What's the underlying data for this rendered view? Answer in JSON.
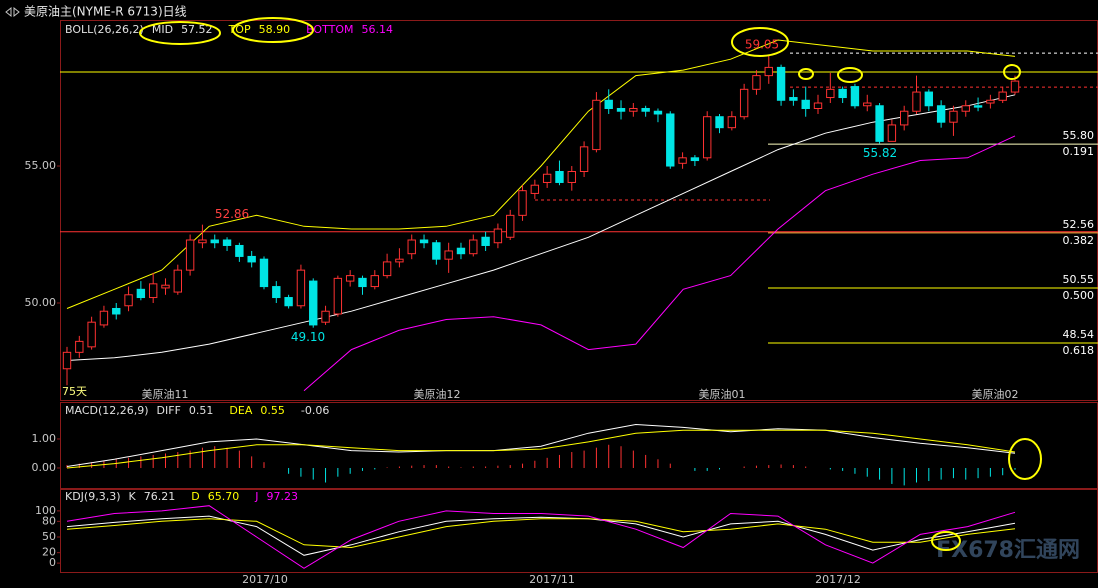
{
  "chart_data": [
    {
      "type": "candlestick",
      "title": "美原油主(NYME-R 6713)日线",
      "indicator": "BOLL(26,26,2)",
      "period_label": "75天",
      "open": [
        47.6,
        48.2,
        48.4,
        49.2,
        49.8,
        49.9,
        50.5,
        50.2,
        50.55,
        50.4,
        51.2,
        52.2,
        52.3,
        52.3,
        52.1,
        51.7,
        51.6,
        50.6,
        50.2,
        49.9,
        50.8,
        49.3,
        49.6,
        50.8,
        50.9,
        50.6,
        51.0,
        51.5,
        51.8,
        52.3,
        52.2,
        51.6,
        52.0,
        51.8,
        52.4,
        52.2,
        52.4,
        53.2,
        54.0,
        54.4,
        54.8,
        54.4,
        54.8,
        55.6,
        57.4,
        57.1,
        57.0,
        57.1,
        57.0,
        56.9,
        55.1,
        55.3,
        55.3,
        56.8,
        56.4,
        56.8,
        57.8,
        58.3,
        58.6,
        57.5,
        57.4,
        57.1,
        57.5,
        57.8,
        57.9,
        57.2,
        57.2,
        55.9,
        56.5,
        57.0,
        57.7,
        57.2,
        56.6,
        57.0,
        57.2,
        57.3,
        57.4,
        57.7
      ],
      "high": [
        48.4,
        48.8,
        49.5,
        49.9,
        50.0,
        50.6,
        50.8,
        51.1,
        50.9,
        51.4,
        52.5,
        52.86,
        52.5,
        52.4,
        52.2,
        51.9,
        51.7,
        50.8,
        50.3,
        51.4,
        50.9,
        49.9,
        51.0,
        51.2,
        51.0,
        51.2,
        51.8,
        52.0,
        52.5,
        52.5,
        52.3,
        52.2,
        52.2,
        52.5,
        52.6,
        52.9,
        53.4,
        54.3,
        54.5,
        55.0,
        55.2,
        55.0,
        55.9,
        57.7,
        57.8,
        57.4,
        57.3,
        57.2,
        57.1,
        57.0,
        55.5,
        55.4,
        57.0,
        56.9,
        57.0,
        58.0,
        58.5,
        59.05,
        58.7,
        57.8,
        57.9,
        57.6,
        58.4,
        57.9,
        58.0,
        57.6,
        57.3,
        56.7,
        57.2,
        58.3,
        57.8,
        57.4,
        57.2,
        57.4,
        57.5,
        57.6,
        57.9,
        58.3
      ],
      "low": [
        47.0,
        48.0,
        48.3,
        49.1,
        49.4,
        49.7,
        50.1,
        50.0,
        50.3,
        50.3,
        51.0,
        52.0,
        52.0,
        51.9,
        51.5,
        51.3,
        50.5,
        50.0,
        49.8,
        49.8,
        49.1,
        49.2,
        49.5,
        50.6,
        50.3,
        50.5,
        50.9,
        51.3,
        51.6,
        52.0,
        51.4,
        51.1,
        51.6,
        51.7,
        51.9,
        52.0,
        52.3,
        53.0,
        53.8,
        54.2,
        54.3,
        54.1,
        54.6,
        55.5,
        56.9,
        56.7,
        56.8,
        56.8,
        56.6,
        54.9,
        54.9,
        55.0,
        55.2,
        56.2,
        56.3,
        56.7,
        57.6,
        58.0,
        57.2,
        57.2,
        56.8,
        56.9,
        57.3,
        57.3,
        57.1,
        57.0,
        55.82,
        55.9,
        56.3,
        56.9,
        57.0,
        56.4,
        56.1,
        56.8,
        57.0,
        57.1,
        57.3,
        57.6
      ],
      "close": [
        48.2,
        48.6,
        49.3,
        49.7,
        49.6,
        50.3,
        50.2,
        50.7,
        50.65,
        51.2,
        52.3,
        52.3,
        52.2,
        52.1,
        51.7,
        51.5,
        50.6,
        50.2,
        49.9,
        51.2,
        49.2,
        49.7,
        50.9,
        51.0,
        50.6,
        51.0,
        51.5,
        51.6,
        52.3,
        52.2,
        51.6,
        51.9,
        51.8,
        52.3,
        52.1,
        52.7,
        53.2,
        54.1,
        54.3,
        54.7,
        54.4,
        54.8,
        55.7,
        57.4,
        57.1,
        57.0,
        57.1,
        57.0,
        56.9,
        55.0,
        55.3,
        55.2,
        56.8,
        56.4,
        56.8,
        57.8,
        58.3,
        58.6,
        57.4,
        57.4,
        57.1,
        57.3,
        57.8,
        57.5,
        57.2,
        57.3,
        55.9,
        56.5,
        57.0,
        57.7,
        57.2,
        56.6,
        57.0,
        57.2,
        57.15,
        57.4,
        57.7,
        58.1
      ],
      "up_color": "#ff3232",
      "down_color": "#00e5e5",
      "series": [
        {
          "name": "MID",
          "color": "#ffffff",
          "latest": 57.52,
          "values": [
            47.9,
            48.0,
            48.2,
            48.5,
            48.9,
            49.3,
            49.7,
            50.2,
            50.7,
            51.2,
            51.8,
            52.4,
            53.2,
            54.0,
            54.8,
            55.6,
            56.2,
            56.6,
            56.9,
            57.2,
            57.6
          ]
        },
        {
          "name": "TOP",
          "color": "#ffff00",
          "latest": {
            "value": 58.9,
            "label": "58.90"
          },
          "values": [
            49.8,
            50.5,
            51.2,
            52.8,
            53.2,
            52.8,
            52.7,
            52.7,
            52.8,
            53.2,
            55.0,
            57.0,
            58.3,
            58.5,
            58.9,
            59.6,
            59.4,
            59.2,
            59.2,
            59.2,
            59.0
          ]
        },
        {
          "name": "BOTTOM",
          "color": "#ff00ff",
          "latest": 56.14,
          "values": [
            null,
            null,
            null,
            null,
            null,
            46.8,
            48.3,
            49.0,
            49.4,
            49.5,
            49.2,
            48.3,
            48.5,
            50.5,
            51.0,
            52.7,
            54.1,
            54.7,
            55.2,
            55.3,
            56.1
          ]
        }
      ],
      "ylim": [
        46.46,
        60.33
      ],
      "yticks": [
        {
          "value": 55,
          "label": "55.00"
        },
        {
          "value": 50,
          "label": "50.00"
        }
      ],
      "grid": false,
      "reference_lines": [
        {
          "value": 58.43,
          "color": "#ffff00",
          "dashed": false
        },
        {
          "value": 52.6,
          "color": "#ff3232",
          "dashed": false
        },
        {
          "value": 59.12,
          "color": "#ffffff",
          "dashed": true
        },
        {
          "value": 57.88,
          "color": "#ff3232",
          "dashed": true
        },
        {
          "value": 53.76,
          "color": "#ff3232",
          "dashed": true
        }
      ],
      "fib_levels": [
        {
          "price": {
            "value": 55.8,
            "label": "55.80"
          },
          "ratio": 0.191,
          "color": "#ffffc0"
        },
        {
          "price": 52.56,
          "ratio": 0.382,
          "color": "#ffb040"
        },
        {
          "price": 50.55,
          "ratio": {
            "value": 0.5,
            "label": "0.500"
          },
          "color": "#ffff00"
        },
        {
          "price": 48.54,
          "ratio": 0.618,
          "color": "#ffff00"
        }
      ],
      "price_labels": [
        {
          "value": 52.86,
          "color": "#ff4040"
        },
        {
          "value": {
            "value": 49.1,
            "label": "49.10"
          },
          "color": "#00e5e5"
        },
        {
          "value": 55.82,
          "color": "#00e5e5"
        },
        {
          "value": 59.05,
          "color": "#ff3232"
        }
      ],
      "contract_labels": [
        "美原油11",
        "美原油12",
        "美原油01",
        "美原油02"
      ],
      "date_labels": [
        "2017/10",
        "2017/11",
        "2017/12"
      ],
      "watermark": "FX678汇通网"
    },
    {
      "type": "macd",
      "title": "MACD(12,26,9)",
      "series": [
        {
          "name": "DIFF",
          "color": "#ffffff",
          "latest": 0.51,
          "values": [
            0.05,
            0.3,
            0.6,
            0.9,
            1.0,
            0.8,
            0.6,
            0.55,
            0.6,
            0.6,
            0.75,
            1.2,
            1.5,
            1.4,
            1.25,
            1.35,
            1.3,
            1.05,
            0.85,
            0.7,
            0.51
          ]
        },
        {
          "name": "DEA",
          "color": "#ffff00",
          "latest": 0.55,
          "values": [
            0.0,
            0.15,
            0.35,
            0.6,
            0.8,
            0.8,
            0.7,
            0.6,
            0.6,
            0.6,
            0.65,
            0.9,
            1.2,
            1.3,
            1.3,
            1.3,
            1.3,
            1.2,
            1.0,
            0.8,
            0.55
          ]
        }
      ],
      "histogram": {
        "latest": -0.06,
        "up_color": "#ff3232",
        "down_color": "#00e5e5",
        "values": [
          0.1,
          0.15,
          0.2,
          0.25,
          0.3,
          0.35,
          0.4,
          0.45,
          0.5,
          0.55,
          0.6,
          0.7,
          0.75,
          0.7,
          0.6,
          0.4,
          0.2,
          0.0,
          -0.2,
          -0.3,
          -0.4,
          -0.5,
          -0.3,
          -0.2,
          -0.1,
          -0.05,
          0.02,
          0.05,
          0.08,
          0.1,
          0.1,
          0.05,
          0.02,
          0.05,
          0.05,
          0.08,
          0.1,
          0.15,
          0.25,
          0.35,
          0.45,
          0.55,
          0.6,
          0.7,
          0.8,
          0.75,
          0.6,
          0.45,
          0.3,
          0.15,
          0.0,
          -0.1,
          -0.1,
          -0.05,
          0.0,
          0.05,
          0.08,
          0.1,
          0.12,
          0.1,
          0.05,
          0.0,
          -0.05,
          -0.1,
          -0.2,
          -0.3,
          -0.4,
          -0.55,
          -0.6,
          -0.5,
          -0.45,
          -0.4,
          -0.35,
          -0.4,
          -0.35,
          -0.3,
          -0.25,
          -0.06
        ]
      },
      "ylim": [
        -0.69,
        2.24
      ],
      "yticks": [
        {
          "value": 1,
          "label": "1.00"
        },
        {
          "value": 0,
          "label": "0.00"
        }
      ]
    },
    {
      "type": "kdj",
      "title": "KDJ(9,3,3)",
      "series": [
        {
          "name": "K",
          "color": "#ffffff",
          "latest": 76.21,
          "values": [
            70,
            78,
            85,
            90,
            70,
            15,
            35,
            60,
            80,
            85,
            88,
            85,
            75,
            50,
            75,
            80,
            55,
            25,
            45,
            60,
            76.21
          ]
        },
        {
          "name": "D",
          "color": "#ffff00",
          "latest": {
            "value": 65.7,
            "label": "65.70"
          },
          "values": [
            65,
            72,
            80,
            85,
            80,
            35,
            30,
            50,
            70,
            80,
            85,
            85,
            80,
            60,
            65,
            75,
            65,
            40,
            40,
            55,
            65.7
          ]
        },
        {
          "name": "J",
          "color": "#ff00ff",
          "latest": 97.23,
          "values": [
            80,
            95,
            100,
            110,
            50,
            -10,
            45,
            80,
            100,
            95,
            95,
            90,
            65,
            30,
            95,
            90,
            35,
            0,
            55,
            70,
            97.23
          ]
        }
      ],
      "ylim": [
        -17,
        140
      ],
      "yticks": [
        100,
        80,
        50,
        20,
        0
      ]
    }
  ]
}
